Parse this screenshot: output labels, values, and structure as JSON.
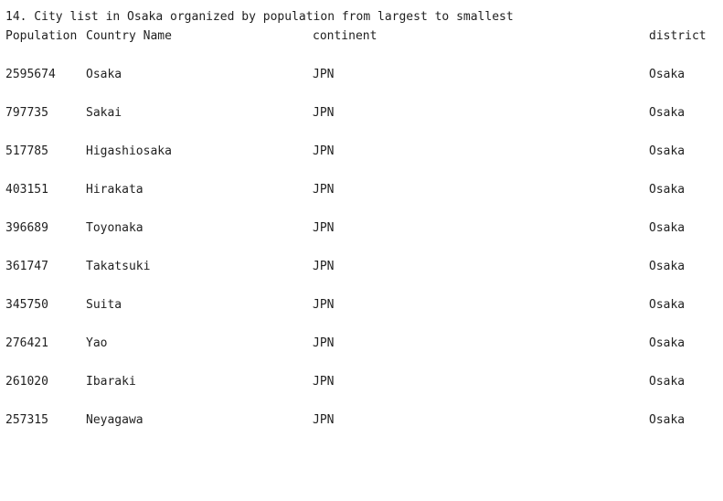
{
  "output": {
    "title": "14. City list in Osaka organized by population from largest to smallest",
    "headers": {
      "population": "Population",
      "name": "Country Name",
      "continent": "continent",
      "district": "district"
    },
    "rows": [
      {
        "population": "2595674",
        "name": "Osaka",
        "continent": "JPN",
        "district": "Osaka"
      },
      {
        "population": "797735",
        "name": "Sakai",
        "continent": "JPN",
        "district": "Osaka"
      },
      {
        "population": "517785",
        "name": "Higashiosaka",
        "continent": "JPN",
        "district": "Osaka"
      },
      {
        "population": "403151",
        "name": "Hirakata",
        "continent": "JPN",
        "district": "Osaka"
      },
      {
        "population": "396689",
        "name": "Toyonaka",
        "continent": "JPN",
        "district": "Osaka"
      },
      {
        "population": "361747",
        "name": "Takatsuki",
        "continent": "JPN",
        "district": "Osaka"
      },
      {
        "population": "345750",
        "name": "Suita",
        "continent": "JPN",
        "district": "Osaka"
      },
      {
        "population": "276421",
        "name": "Yao",
        "continent": "JPN",
        "district": "Osaka"
      },
      {
        "population": "261020",
        "name": "Ibaraki",
        "continent": "JPN",
        "district": "Osaka"
      },
      {
        "population": "257315",
        "name": "Neyagawa",
        "continent": "JPN",
        "district": "Osaka"
      }
    ]
  }
}
